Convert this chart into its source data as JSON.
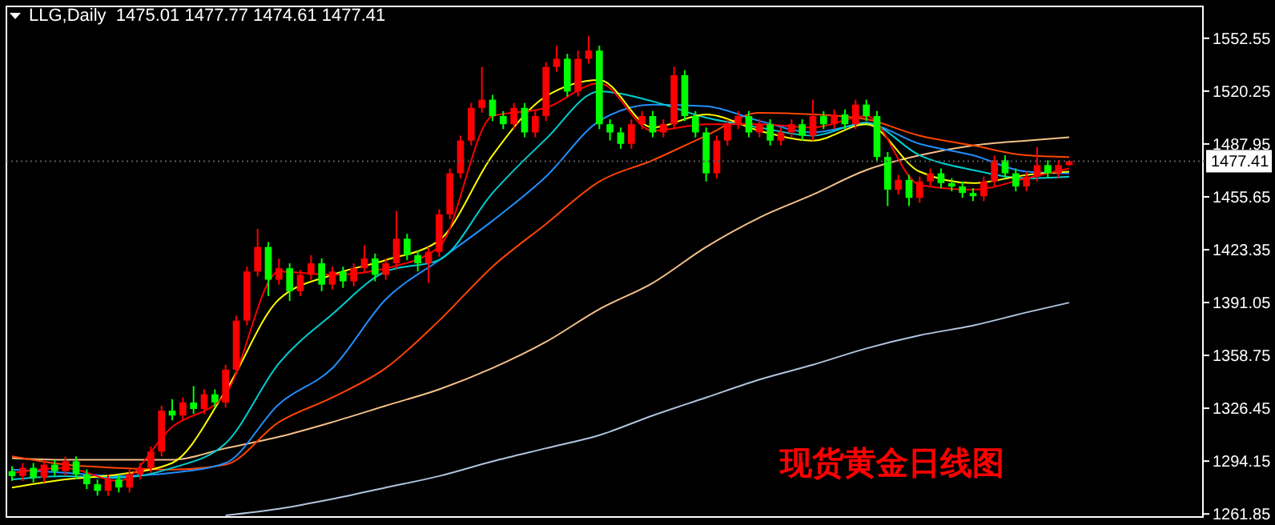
{
  "chart_data": {
    "type": "candlestick",
    "title": "LLG,Daily  1475.01 1477.77 1474.61 1477.41",
    "categories": [
      null,
      null,
      null,
      null,
      null,
      null,
      null,
      null,
      null,
      null,
      null,
      null,
      null,
      null,
      null,
      null,
      null,
      null,
      null,
      null,
      null,
      null,
      null,
      null,
      null,
      null,
      null,
      null,
      null,
      null,
      null,
      null,
      null,
      null,
      null,
      null,
      null,
      null,
      null,
      null,
      null,
      null,
      null,
      null,
      null,
      null,
      null,
      null,
      null,
      null,
      null,
      null,
      null,
      null,
      null,
      null,
      null,
      null,
      null,
      null,
      null,
      null,
      null,
      null,
      null,
      null,
      null,
      null,
      null,
      null,
      null,
      null,
      null,
      null,
      null,
      null,
      null,
      null,
      null,
      null,
      null,
      null,
      null,
      null,
      null,
      null,
      null,
      null,
      null,
      null,
      null,
      null,
      null,
      null,
      null,
      null,
      null,
      null,
      null,
      null,
      null,
      null,
      null,
      null,
      null,
      null,
      null,
      null,
      null,
      null,
      null,
      null
    ],
    "ohlc": [
      [
        1288,
        1291,
        1282,
        1285
      ],
      [
        1285,
        1293,
        1282,
        1290
      ],
      [
        1290,
        1293,
        1281,
        1284
      ],
      [
        1284,
        1295,
        1281,
        1292
      ],
      [
        1292,
        1295,
        1285,
        1288
      ],
      [
        1288,
        1297,
        1285,
        1294
      ],
      [
        1294,
        1297,
        1283,
        1286
      ],
      [
        1286,
        1289,
        1277,
        1280
      ],
      [
        1280,
        1283,
        1273,
        1276
      ],
      [
        1276,
        1286,
        1273,
        1283
      ],
      [
        1283,
        1286,
        1275,
        1278
      ],
      [
        1278,
        1289,
        1275,
        1286
      ],
      [
        1286,
        1293,
        1283,
        1290
      ],
      [
        1290,
        1303,
        1287,
        1300
      ],
      [
        1300,
        1328,
        1297,
        1325
      ],
      [
        1325,
        1332,
        1319,
        1322
      ],
      [
        1322,
        1333,
        1319,
        1330
      ],
      [
        1330,
        1340,
        1323,
        1326
      ],
      [
        1326,
        1338,
        1323,
        1335
      ],
      [
        1335,
        1338,
        1327,
        1330
      ],
      [
        1330,
        1353,
        1327,
        1350
      ],
      [
        1350,
        1383,
        1347,
        1380
      ],
      [
        1380,
        1413,
        1377,
        1410
      ],
      [
        1410,
        1436,
        1407,
        1425
      ],
      [
        1425,
        1428,
        1395,
        1405
      ],
      [
        1405,
        1418,
        1402,
        1412
      ],
      [
        1412,
        1415,
        1392,
        1398
      ],
      [
        1398,
        1411,
        1395,
        1408
      ],
      [
        1408,
        1420,
        1405,
        1415
      ],
      [
        1415,
        1418,
        1398,
        1402
      ],
      [
        1402,
        1413,
        1399,
        1410
      ],
      [
        1410,
        1413,
        1400,
        1404
      ],
      [
        1404,
        1415,
        1401,
        1412
      ],
      [
        1412,
        1426,
        1409,
        1418
      ],
      [
        1418,
        1421,
        1404,
        1408
      ],
      [
        1408,
        1418,
        1405,
        1415
      ],
      [
        1415,
        1447,
        1412,
        1430
      ],
      [
        1430,
        1433,
        1417,
        1420
      ],
      [
        1420,
        1423,
        1410,
        1415
      ],
      [
        1415,
        1425,
        1403,
        1422
      ],
      [
        1422,
        1448,
        1419,
        1445
      ],
      [
        1445,
        1473,
        1442,
        1470
      ],
      [
        1470,
        1493,
        1467,
        1490
      ],
      [
        1490,
        1513,
        1487,
        1510
      ],
      [
        1510,
        1535,
        1507,
        1515
      ],
      [
        1515,
        1518,
        1502,
        1505
      ],
      [
        1505,
        1508,
        1497,
        1500
      ],
      [
        1500,
        1513,
        1497,
        1510
      ],
      [
        1510,
        1513,
        1492,
        1495
      ],
      [
        1495,
        1508,
        1492,
        1505
      ],
      [
        1505,
        1538,
        1502,
        1535
      ],
      [
        1535,
        1548,
        1532,
        1540
      ],
      [
        1540,
        1543,
        1517,
        1520
      ],
      [
        1520,
        1545,
        1517,
        1540
      ],
      [
        1540,
        1554,
        1537,
        1545
      ],
      [
        1545,
        1548,
        1497,
        1500
      ],
      [
        1500,
        1503,
        1490,
        1495
      ],
      [
        1495,
        1498,
        1485,
        1488
      ],
      [
        1488,
        1503,
        1485,
        1500
      ],
      [
        1500,
        1508,
        1497,
        1505
      ],
      [
        1505,
        1508,
        1492,
        1495
      ],
      [
        1495,
        1503,
        1492,
        1500
      ],
      [
        1500,
        1535,
        1497,
        1530
      ],
      [
        1530,
        1533,
        1502,
        1505
      ],
      [
        1505,
        1508,
        1492,
        1495
      ],
      [
        1495,
        1498,
        1465,
        1470
      ],
      [
        1470,
        1493,
        1467,
        1490
      ],
      [
        1490,
        1503,
        1487,
        1500
      ],
      [
        1500,
        1508,
        1497,
        1505
      ],
      [
        1505,
        1508,
        1492,
        1495
      ],
      [
        1495,
        1503,
        1492,
        1500
      ],
      [
        1500,
        1503,
        1487,
        1490
      ],
      [
        1490,
        1498,
        1487,
        1495
      ],
      [
        1495,
        1503,
        1492,
        1500
      ],
      [
        1500,
        1503,
        1490,
        1493
      ],
      [
        1493,
        1515,
        1490,
        1505
      ],
      [
        1505,
        1508,
        1497,
        1500
      ],
      [
        1500,
        1509,
        1497,
        1506
      ],
      [
        1506,
        1509,
        1497,
        1500
      ],
      [
        1500,
        1515,
        1497,
        1512
      ],
      [
        1512,
        1515,
        1502,
        1505
      ],
      [
        1505,
        1508,
        1477,
        1480
      ],
      [
        1480,
        1483,
        1450,
        1460
      ],
      [
        1460,
        1469,
        1457,
        1466
      ],
      [
        1466,
        1469,
        1450,
        1455
      ],
      [
        1455,
        1468,
        1452,
        1465
      ],
      [
        1465,
        1473,
        1462,
        1470
      ],
      [
        1470,
        1473,
        1461,
        1464
      ],
      [
        1464,
        1467,
        1459,
        1462
      ],
      [
        1462,
        1465,
        1455,
        1458
      ],
      [
        1458,
        1461,
        1453,
        1456
      ],
      [
        1456,
        1468,
        1453,
        1465
      ],
      [
        1465,
        1481,
        1462,
        1478
      ],
      [
        1478,
        1481,
        1467,
        1470
      ],
      [
        1470,
        1473,
        1459,
        1462
      ],
      [
        1462,
        1471,
        1459,
        1468
      ],
      [
        1468,
        1486,
        1465,
        1475
      ],
      [
        1475,
        1478,
        1467,
        1470
      ],
      [
        1470,
        1478,
        1467,
        1475.01
      ],
      [
        1475.01,
        1477.77,
        1474.61,
        1477.41
      ],
      null,
      null,
      null,
      null,
      null,
      null,
      null,
      null,
      null,
      null,
      null,
      null
    ],
    "colors": [
      "#00ff00",
      "#ff0000",
      "#00ff00",
      "#ff0000",
      "#00ff00",
      "#ff0000",
      "#00ff00",
      "#00ff00",
      "#00ff00",
      "#ff0000",
      "#00ff00",
      "#ff0000",
      "#ff0000",
      "#ff0000",
      "#ff0000",
      "#00ff00",
      "#ff0000",
      "#00ff00",
      "#ff0000",
      "#00ff00",
      "#ff0000",
      "#ff0000",
      "#ff0000",
      "#ff0000",
      "#00ff00",
      "#ff0000",
      "#00ff00",
      "#ff0000",
      "#ff0000",
      "#00ff00",
      "#ff0000",
      "#00ff00",
      "#ff0000",
      "#ff0000",
      "#00ff00",
      "#ff0000",
      "#ff0000",
      "#00ff00",
      "#00ff00",
      "#ff0000",
      "#ff0000",
      "#ff0000",
      "#ff0000",
      "#ff0000",
      "#ff0000",
      "#00ff00",
      "#00ff00",
      "#ff0000",
      "#00ff00",
      "#ff0000",
      "#ff0000",
      "#ff0000",
      "#00ff00",
      "#ff0000",
      "#ff0000",
      "#00ff00",
      "#00ff00",
      "#00ff00",
      "#ff0000",
      "#ff0000",
      "#00ff00",
      "#ff0000",
      "#ff0000",
      "#00ff00",
      "#00ff00",
      "#00ff00",
      "#ff0000",
      "#ff0000",
      "#ff0000",
      "#00ff00",
      "#ff0000",
      "#00ff00",
      "#ff0000",
      "#ff0000",
      "#00ff00",
      "#ff0000",
      "#00ff00",
      "#ff0000",
      "#00ff00",
      "#ff0000",
      "#00ff00",
      "#00ff00",
      "#00ff00",
      "#ff0000",
      "#00ff00",
      "#ff0000",
      "#ff0000",
      "#00ff00",
      "#00ff00",
      "#00ff00",
      "#00ff00",
      "#ff0000",
      "#ff0000",
      "#00ff00",
      "#00ff00",
      "#ff0000",
      "#ff0000",
      "#00ff00",
      "#ff0000",
      "#ff0000",
      null,
      null,
      null,
      null,
      null,
      null,
      null,
      null,
      null,
      null,
      null,
      null
    ],
    "series": [
      {
        "type": "line",
        "color": "#b0c4de",
        "values": [
          null,
          null,
          null,
          null,
          null,
          null,
          null,
          null,
          null,
          null,
          null,
          null,
          null,
          null,
          null,
          null,
          null,
          null,
          null,
          null,
          1261,
          null,
          null,
          null,
          null,
          1265,
          null,
          null,
          null,
          null,
          1271,
          null,
          null,
          null,
          null,
          1278,
          null,
          null,
          null,
          null,
          1285,
          null,
          null,
          null,
          null,
          1294,
          null,
          null,
          null,
          null,
          1302,
          null,
          null,
          null,
          null,
          1310,
          null,
          null,
          null,
          null,
          1322,
          null,
          null,
          null,
          null,
          1333,
          null,
          null,
          null,
          null,
          1344,
          null,
          null,
          null,
          null,
          1353,
          null,
          null,
          null,
          null,
          1363,
          null,
          null,
          null,
          null,
          1371,
          null,
          null,
          null,
          null,
          1377,
          null,
          null,
          null,
          null,
          1385,
          null,
          null,
          null,
          1391,
          null,
          null,
          null,
          null,
          null,
          null,
          null,
          null,
          null,
          null,
          null,
          null
        ]
      },
      {
        "type": "line",
        "color": "#f5c08a",
        "values": [
          1296,
          null,
          null,
          null,
          null,
          1295,
          null,
          null,
          null,
          null,
          1295,
          null,
          null,
          null,
          null,
          1295,
          null,
          null,
          null,
          null,
          1302,
          null,
          null,
          null,
          null,
          1309,
          null,
          null,
          null,
          null,
          1318,
          null,
          null,
          null,
          null,
          1328,
          null,
          null,
          null,
          null,
          1338,
          null,
          null,
          null,
          null,
          1351,
          null,
          null,
          null,
          null,
          1367,
          null,
          null,
          null,
          null,
          1387,
          null,
          null,
          null,
          null,
          1403,
          null,
          null,
          null,
          null,
          1425,
          null,
          null,
          null,
          null,
          1443,
          null,
          null,
          null,
          null,
          1457,
          null,
          null,
          null,
          null,
          1472,
          null,
          null,
          null,
          null,
          1481,
          null,
          null,
          null,
          null,
          1487,
          null,
          null,
          null,
          null,
          1490,
          null,
          null,
          null,
          1492,
          null,
          null,
          null,
          null,
          null,
          null,
          null,
          null,
          null,
          null,
          null,
          null
        ]
      },
      {
        "type": "line",
        "color": "#ff4500",
        "values": [
          1297,
          null,
          null,
          null,
          null,
          1292,
          null,
          null,
          null,
          null,
          1290,
          null,
          null,
          null,
          null,
          1289,
          null,
          null,
          null,
          null,
          1292,
          null,
          null,
          null,
          null,
          1318,
          null,
          null,
          null,
          null,
          1333,
          null,
          null,
          null,
          null,
          1351,
          null,
          null,
          null,
          null,
          1380,
          null,
          null,
          null,
          null,
          1413,
          null,
          null,
          null,
          null,
          1439,
          null,
          null,
          null,
          null,
          1465,
          null,
          null,
          null,
          null,
          1478,
          null,
          null,
          null,
          null,
          1493,
          null,
          null,
          null,
          null,
          1507,
          null,
          null,
          null,
          null,
          1506,
          null,
          null,
          null,
          null,
          1503,
          null,
          null,
          null,
          null,
          1493,
          null,
          null,
          null,
          null,
          1487,
          null,
          null,
          null,
          null,
          1481,
          null,
          null,
          null,
          1480,
          null,
          null,
          null,
          null,
          null,
          null,
          null,
          null,
          null,
          null,
          null,
          null
        ]
      },
      {
        "type": "line",
        "color": "#1e90ff",
        "values": [
          1289,
          null,
          null,
          null,
          null,
          1287,
          null,
          null,
          null,
          null,
          1285,
          null,
          null,
          null,
          null,
          1287,
          null,
          null,
          null,
          null,
          1293,
          null,
          null,
          null,
          null,
          1329,
          null,
          null,
          null,
          null,
          1351,
          null,
          null,
          null,
          null,
          1393,
          null,
          null,
          null,
          null,
          1417,
          null,
          null,
          null,
          null,
          1441,
          null,
          null,
          null,
          null,
          1468,
          null,
          null,
          null,
          null,
          1502,
          null,
          null,
          null,
          null,
          1512,
          null,
          null,
          null,
          null,
          1511,
          null,
          null,
          null,
          null,
          1502,
          null,
          null,
          null,
          null,
          1495,
          null,
          null,
          null,
          null,
          1500,
          null,
          null,
          null,
          null,
          1488,
          null,
          null,
          null,
          null,
          1481,
          null,
          null,
          null,
          null,
          1471,
          null,
          null,
          null,
          1470,
          null,
          null,
          null,
          null,
          null,
          null,
          null,
          null,
          null,
          null,
          null,
          null
        ]
      },
      {
        "type": "line",
        "color": "#00ced1",
        "values": [
          1283,
          null,
          null,
          null,
          null,
          1285,
          null,
          null,
          null,
          null,
          1284,
          null,
          null,
          null,
          null,
          1290,
          null,
          null,
          null,
          null,
          1305,
          null,
          null,
          null,
          null,
          1354,
          null,
          null,
          null,
          null,
          1384,
          null,
          null,
          null,
          null,
          1410,
          null,
          null,
          null,
          null,
          1417,
          null,
          null,
          null,
          null,
          1458,
          null,
          null,
          null,
          null,
          1491,
          null,
          null,
          null,
          null,
          1520,
          null,
          null,
          null,
          null,
          1514,
          null,
          null,
          null,
          null,
          1504,
          null,
          null,
          null,
          null,
          1498,
          null,
          null,
          null,
          null,
          1493,
          null,
          null,
          null,
          null,
          1501,
          null,
          null,
          null,
          null,
          1481,
          null,
          null,
          null,
          null,
          1472,
          null,
          null,
          null,
          null,
          1467,
          null,
          null,
          null,
          1468,
          null,
          null,
          null,
          null,
          null,
          null,
          null,
          null,
          null,
          null,
          null,
          null
        ]
      },
      {
        "type": "line",
        "color": "#ffff00",
        "values": [
          1278,
          null,
          null,
          null,
          null,
          1283,
          null,
          null,
          null,
          null,
          1286,
          null,
          null,
          null,
          null,
          1293,
          null,
          null,
          null,
          null,
          1337,
          null,
          null,
          null,
          null,
          1393,
          null,
          null,
          null,
          null,
          1408,
          null,
          null,
          null,
          null,
          1417,
          null,
          null,
          null,
          null,
          1429,
          null,
          null,
          null,
          null,
          1481,
          null,
          null,
          null,
          null,
          1517,
          null,
          null,
          null,
          null,
          1527,
          null,
          null,
          null,
          null,
          1498,
          null,
          null,
          null,
          null,
          1506,
          null,
          null,
          null,
          null,
          1496,
          null,
          null,
          null,
          null,
          1490,
          null,
          null,
          null,
          null,
          1500,
          null,
          null,
          null,
          null,
          1471,
          null,
          null,
          null,
          null,
          1464,
          null,
          null,
          null,
          null,
          1469,
          null,
          null,
          null,
          1471,
          null,
          null,
          null,
          null,
          null,
          null,
          null,
          null,
          null,
          null,
          null,
          null
        ]
      },
      {
        "type": "line",
        "color": "#ff0000",
        "values": [
          1287,
          null,
          null,
          null,
          null,
          1290,
          null,
          null,
          null,
          null,
          1282,
          null,
          null,
          null,
          null,
          1315,
          null,
          null,
          null,
          null,
          1335,
          null,
          null,
          null,
          null,
          1410,
          null,
          null,
          null,
          null,
          1408,
          null,
          null,
          null,
          null,
          1412,
          null,
          null,
          null,
          null,
          1425,
          null,
          null,
          null,
          null,
          1505,
          null,
          null,
          null,
          null,
          1510,
          null,
          null,
          null,
          null,
          1525,
          null,
          null,
          null,
          null,
          1496,
          null,
          null,
          null,
          null,
          1500,
          null,
          null,
          null,
          null,
          1500,
          null,
          null,
          null,
          null,
          1498,
          null,
          null,
          null,
          null,
          1505,
          null,
          null,
          null,
          null,
          1463,
          null,
          null,
          null,
          null,
          1460,
          null,
          null,
          null,
          null,
          1467,
          null,
          null,
          null,
          1473,
          null,
          null,
          null,
          null,
          null,
          null,
          null,
          null,
          null,
          null,
          null,
          null
        ]
      }
    ],
    "ylim": [
      1260,
      1572
    ],
    "yticks": [
      1552.55,
      1520.25,
      1487.95,
      1455.65,
      1423.35,
      1391.05,
      1358.75,
      1326.45,
      1294.15,
      1261.85
    ],
    "tick_labels": "y",
    "ref_lines": [
      {
        "axis": "y",
        "value": 1477.41,
        "label": "1477.41"
      }
    ],
    "annotations": [
      "现货黄金日线图"
    ]
  }
}
